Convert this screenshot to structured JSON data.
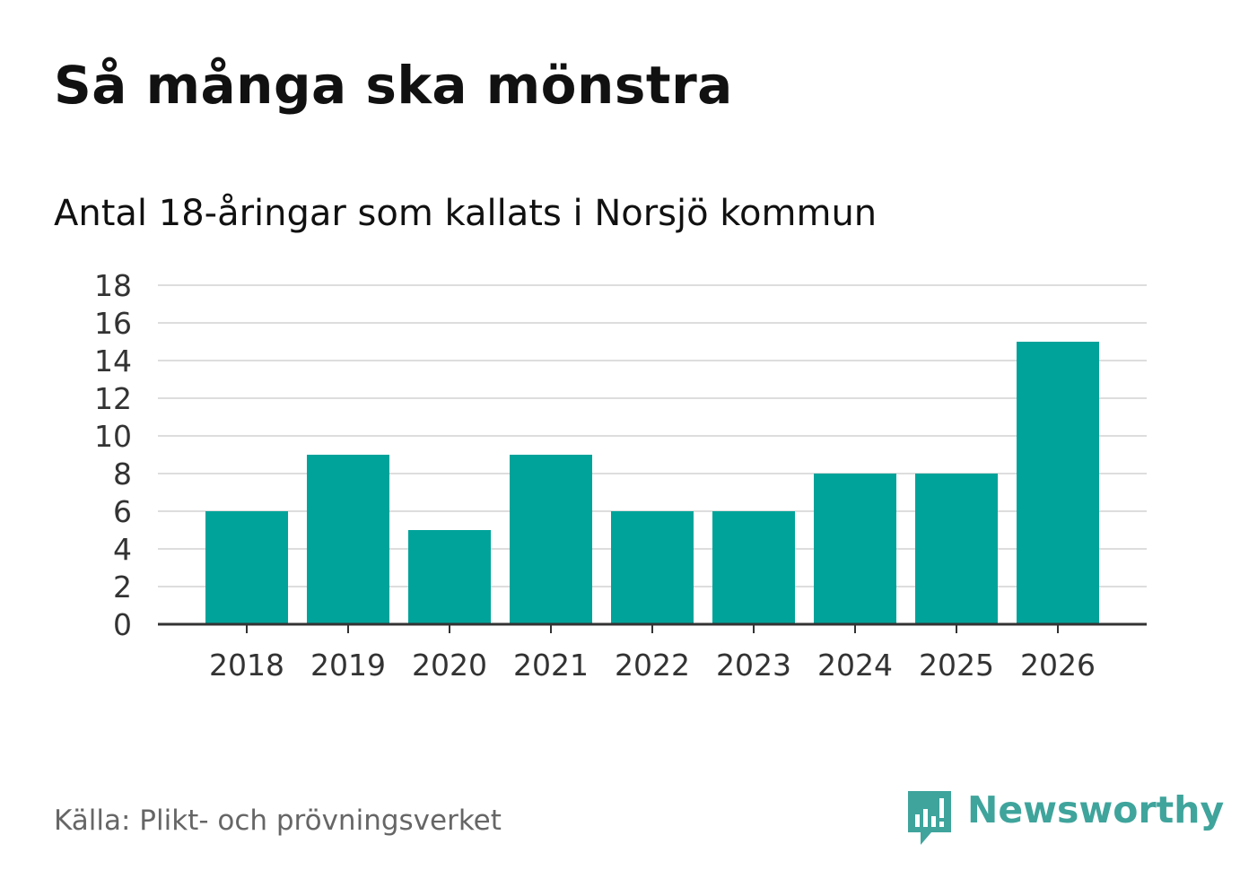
{
  "title": "Så många ska mönstra",
  "subtitle": "Antal 18-åringar som kallats i Norsjö kommun",
  "source": "Källa: Plikt- och prövningsverket",
  "brand": {
    "name": "Newsworthy",
    "icon": "newsworthy-logo-icon",
    "color": "#3fa49c"
  },
  "colors": {
    "bar": "#00a39a",
    "grid": "#dddddd",
    "axis": "#333333",
    "tick_text": "#333333"
  },
  "chart_data": {
    "type": "bar",
    "title": "Så många ska mönstra",
    "subtitle": "Antal 18-åringar som kallats i Norsjö kommun",
    "xlabel": "",
    "ylabel": "",
    "categories": [
      "2018",
      "2019",
      "2020",
      "2021",
      "2022",
      "2023",
      "2024",
      "2025",
      "2026"
    ],
    "values": [
      6,
      9,
      5,
      9,
      6,
      6,
      8,
      8,
      15
    ],
    "ylim": [
      0,
      18
    ],
    "yticks": [
      0,
      2,
      4,
      6,
      8,
      10,
      12,
      14,
      16,
      18
    ],
    "grid": true,
    "legend": "none"
  }
}
